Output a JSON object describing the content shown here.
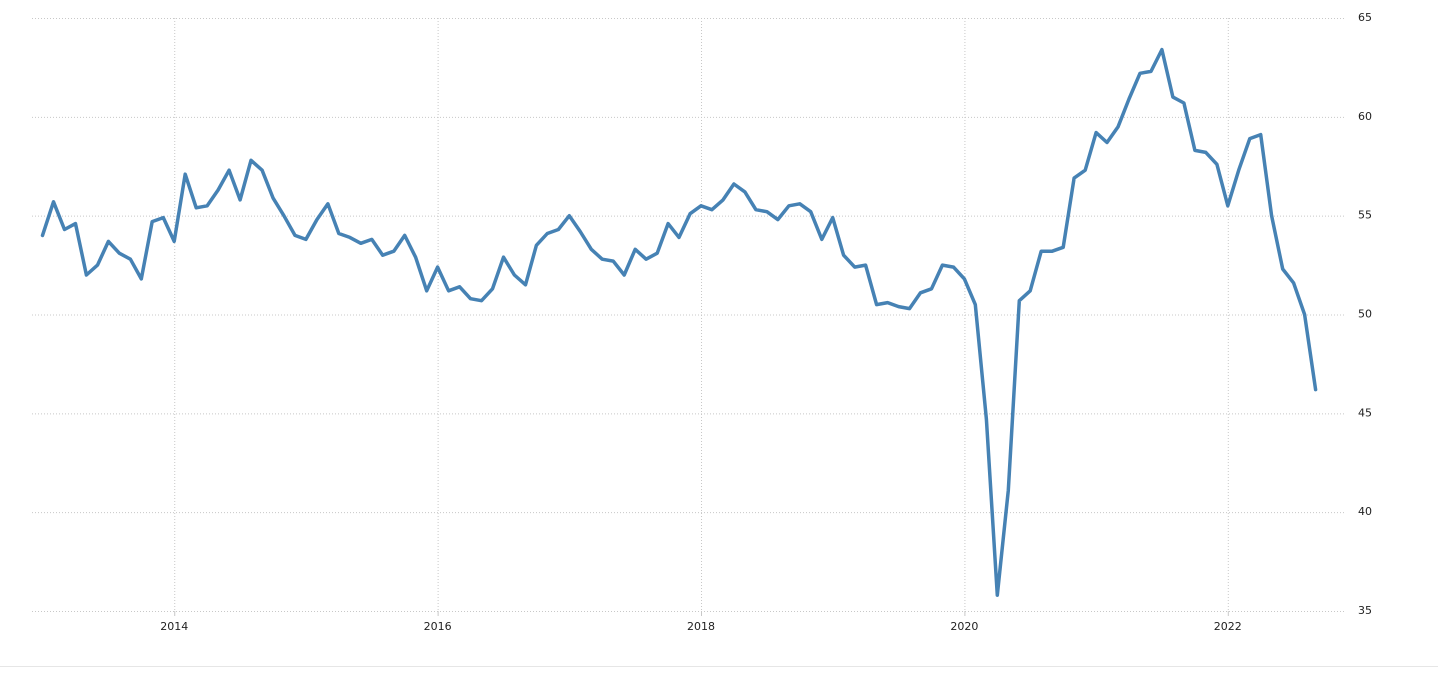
{
  "chart_data": {
    "type": "line",
    "x": [
      2013,
      2013.083,
      2013.167,
      2013.25,
      2013.333,
      2013.417,
      2013.5,
      2013.583,
      2013.667,
      2013.75,
      2013.833,
      2013.917,
      2014,
      2014.083,
      2014.167,
      2014.25,
      2014.333,
      2014.417,
      2014.5,
      2014.583,
      2014.667,
      2014.75,
      2014.833,
      2014.917,
      2015,
      2015.083,
      2015.167,
      2015.25,
      2015.333,
      2015.417,
      2015.5,
      2015.583,
      2015.667,
      2015.75,
      2015.833,
      2015.917,
      2016,
      2016.083,
      2016.167,
      2016.25,
      2016.333,
      2016.417,
      2016.5,
      2016.583,
      2016.667,
      2016.75,
      2016.833,
      2016.917,
      2017,
      2017.083,
      2017.167,
      2017.25,
      2017.333,
      2017.417,
      2017.5,
      2017.583,
      2017.667,
      2017.75,
      2017.833,
      2017.917,
      2018,
      2018.083,
      2018.167,
      2018.25,
      2018.333,
      2018.417,
      2018.5,
      2018.583,
      2018.667,
      2018.75,
      2018.833,
      2018.917,
      2019,
      2019.083,
      2019.167,
      2019.25,
      2019.333,
      2019.417,
      2019.5,
      2019.583,
      2019.667,
      2019.75,
      2019.833,
      2019.917,
      2020,
      2020.083,
      2020.167,
      2020.25,
      2020.333,
      2020.417,
      2020.5,
      2020.583,
      2020.667,
      2020.75,
      2020.833,
      2020.917,
      2021,
      2021.083,
      2021.167,
      2021.25,
      2021.333,
      2021.417,
      2021.5,
      2021.583,
      2021.667,
      2021.75,
      2021.833,
      2021.917,
      2022,
      2022.083,
      2022.167,
      2022.25,
      2022.333,
      2022.417,
      2022.5,
      2022.583,
      2022.667
    ],
    "series": [
      {
        "color": "#4682b4",
        "values": [
          54.0,
          55.7,
          54.3,
          54.6,
          52.0,
          52.5,
          53.7,
          53.1,
          52.8,
          51.8,
          54.7,
          54.9,
          53.7,
          57.1,
          55.4,
          55.5,
          56.3,
          57.3,
          55.8,
          57.8,
          57.3,
          55.9,
          55.0,
          54.0,
          53.8,
          54.8,
          55.6,
          54.1,
          53.9,
          53.6,
          53.8,
          53.0,
          53.2,
          54.0,
          52.9,
          51.2,
          52.4,
          51.2,
          51.4,
          50.8,
          50.7,
          51.3,
          52.9,
          52.0,
          51.5,
          53.5,
          54.1,
          54.3,
          55.0,
          54.2,
          53.3,
          52.8,
          52.7,
          52.0,
          53.3,
          52.8,
          53.1,
          54.6,
          53.9,
          55.1,
          55.5,
          55.3,
          55.8,
          56.6,
          56.2,
          55.3,
          55.2,
          54.8,
          55.5,
          55.6,
          55.2,
          53.8,
          54.9,
          53.0,
          52.4,
          52.5,
          50.5,
          50.6,
          50.4,
          50.3,
          51.1,
          51.3,
          52.5,
          52.4,
          51.8,
          50.5,
          44.7,
          35.8,
          41.1,
          50.7,
          51.2,
          53.2,
          53.2,
          53.4,
          56.9,
          57.3,
          59.2,
          58.7,
          59.5,
          60.9,
          62.2,
          62.3,
          63.4,
          61.0,
          60.7,
          58.3,
          58.2,
          57.6,
          55.5,
          57.3,
          58.9,
          59.1,
          55.0,
          52.3,
          51.6,
          50.0,
          46.2
        ]
      }
    ],
    "xlim": [
      2012.92,
      2022.89
    ],
    "xticks": [
      2014,
      2016,
      2018,
      2020,
      2022
    ],
    "ylim": [
      35,
      65
    ],
    "yticks": [
      35,
      40,
      45,
      50,
      55,
      60,
      65
    ],
    "grid": true
  }
}
